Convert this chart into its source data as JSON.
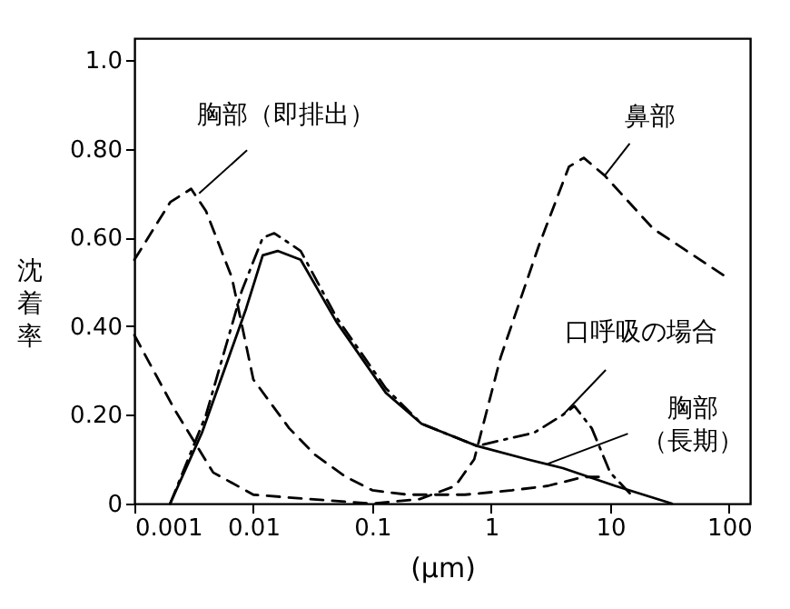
{
  "chart_data": {
    "type": "line",
    "xlabel": "(μm)",
    "ylabel": "沈着率",
    "log": "x",
    "xlim": [
      0.001,
      150
    ],
    "ylim": [
      0,
      1.05
    ],
    "xticks": [
      0.001,
      0.01,
      0.1,
      1,
      10,
      100
    ],
    "yticks": [
      {
        "value": 0,
        "label": "0"
      },
      {
        "value": 0.2,
        "label": "0.20"
      },
      {
        "value": 0.4,
        "label": "0.40"
      },
      {
        "value": 0.6,
        "label": "0.60"
      },
      {
        "value": 0.8,
        "label": "0.80"
      },
      {
        "value": 1.0,
        "label": "1.0"
      }
    ],
    "grid": false,
    "marker": "none",
    "series": [
      {
        "color": "#000000",
        "line_style": "dashed",
        "x": [
          0.001,
          0.002,
          0.003,
          0.004,
          0.0066,
          0.01,
          0.02,
          0.033,
          0.06,
          0.1,
          0.2,
          0.3,
          0.6,
          1.5,
          3,
          6,
          8
        ],
        "values": [
          0.55,
          0.68,
          0.71,
          0.66,
          0.51,
          0.28,
          0.17,
          0.11,
          0.06,
          0.03,
          0.02,
          0.02,
          0.02,
          0.03,
          0.04,
          0.06,
          0.06
        ]
      },
      {
        "color": "#000000",
        "line_style": "dashed",
        "x": [
          0.001,
          0.0022,
          0.0046,
          0.01,
          0.03,
          0.1,
          0.25,
          0.5,
          0.72,
          1.2,
          2.5,
          4.5,
          6,
          9,
          23,
          96
        ],
        "values": [
          0.38,
          0.21,
          0.07,
          0.02,
          0.01,
          0.0,
          0.01,
          0.04,
          0.1,
          0.33,
          0.58,
          0.76,
          0.78,
          0.74,
          0.62,
          0.51
        ]
      },
      {
        "color": "#000000",
        "line_style": "solid",
        "x": [
          0.002,
          0.0037,
          0.0087,
          0.012,
          0.016,
          0.025,
          0.05,
          0.13,
          0.26,
          0.76,
          2,
          4,
          11,
          33
        ],
        "values": [
          0,
          0.16,
          0.44,
          0.56,
          0.57,
          0.55,
          0.41,
          0.25,
          0.18,
          0.13,
          0.1,
          0.08,
          0.04,
          0
        ]
      },
      {
        "color": "#000000",
        "line_style": "dashdot",
        "x": [
          0.002,
          0.004,
          0.008,
          0.012,
          0.015,
          0.025,
          0.05,
          0.13,
          0.26,
          0.76,
          2.3,
          4,
          5,
          7,
          10,
          15
        ],
        "values": [
          0,
          0.2,
          0.48,
          0.6,
          0.61,
          0.57,
          0.42,
          0.26,
          0.18,
          0.13,
          0.16,
          0.2,
          0.22,
          0.17,
          0.07,
          0.02
        ]
      }
    ],
    "annotations": [
      {
        "text": "胸部（即排出）",
        "x": 0.0035,
        "y": 0.7
      },
      {
        "text": "鼻部",
        "x": 9,
        "y": 0.74
      },
      {
        "text": "口呼吸の場合",
        "x": 4,
        "y": 0.2
      },
      {
        "text": "胸部（長期）",
        "x": 3,
        "y": 0.09
      }
    ]
  }
}
